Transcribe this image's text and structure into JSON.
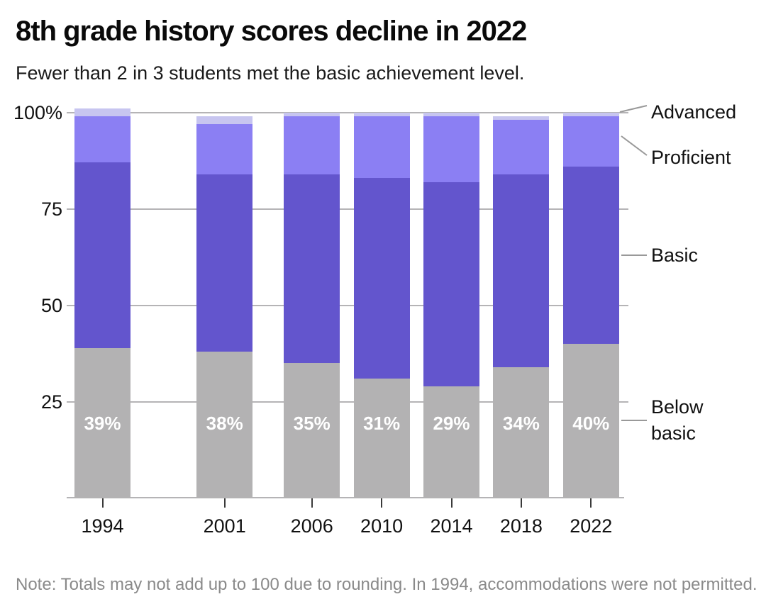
{
  "header": {
    "title": "8th grade history scores decline in 2022",
    "subtitle": "Fewer than 2 in 3 students met the basic achievement level."
  },
  "chart_data": {
    "type": "bar",
    "stacked": true,
    "categories": [
      "1994",
      "2001",
      "2006",
      "2010",
      "2014",
      "2018",
      "2022"
    ],
    "series": [
      {
        "name": "Below basic",
        "color": "#b3b2b3",
        "values": [
          39,
          38,
          35,
          31,
          29,
          34,
          40
        ],
        "data_labels": [
          "39%",
          "38%",
          "35%",
          "31%",
          "29%",
          "34%",
          "40%"
        ],
        "data_label_color": "#ffffff"
      },
      {
        "name": "Basic",
        "color": "#6355cd",
        "values": [
          48,
          46,
          49,
          52,
          53,
          50,
          46
        ]
      },
      {
        "name": "Proficient",
        "color": "#8b7ff3",
        "values": [
          12,
          13,
          15,
          16,
          17,
          14,
          13
        ]
      },
      {
        "name": "Advanced",
        "color": "#c7c5f0",
        "values": [
          2,
          2,
          1,
          1,
          1,
          1,
          1
        ]
      }
    ],
    "title": "8th grade history scores decline in 2022",
    "xlabel": "",
    "ylabel": "",
    "ylim": [
      0,
      100
    ],
    "y_ticks": [
      "100%",
      "75",
      "50",
      "25"
    ],
    "y_tick_values": [
      100,
      75,
      50,
      25
    ],
    "x_axis_scale": "linear-year",
    "grid": true,
    "gridline_color": "#b5b4b6",
    "legend_position": "right"
  },
  "legend": {
    "advanced": "Advanced",
    "proficient": "Proficient",
    "basic": "Basic",
    "below_basic": "Below basic"
  },
  "note": {
    "text": "Note: Totals may not add up to 100 due to rounding. In 1994, accommodations were not permitted."
  }
}
